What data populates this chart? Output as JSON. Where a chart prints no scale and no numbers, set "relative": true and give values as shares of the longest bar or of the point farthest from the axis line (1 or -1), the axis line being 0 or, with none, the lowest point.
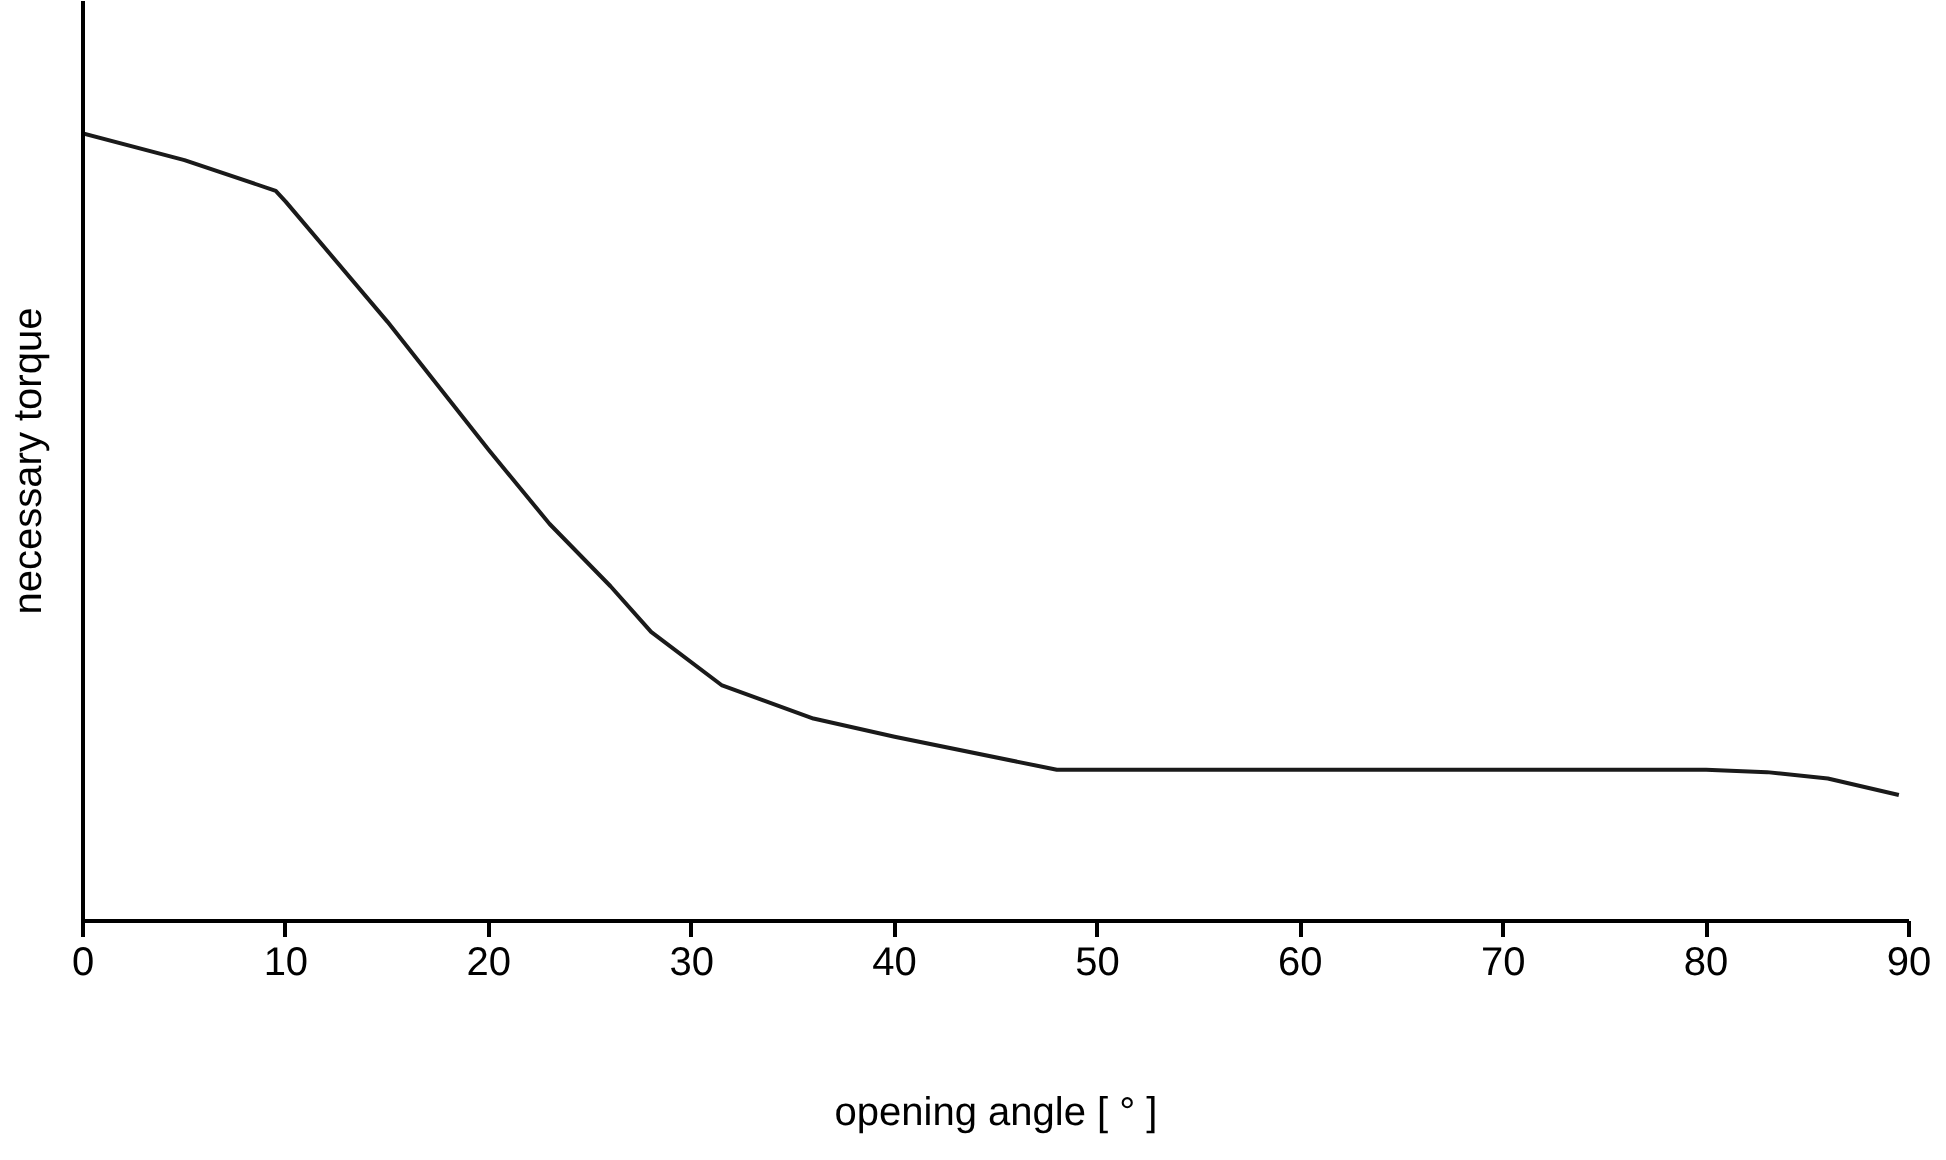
{
  "chart_data": {
    "type": "line",
    "relative": true,
    "xlabel": "opening angle [ ° ]",
    "ylabel": "necessary torque",
    "xlim": [
      0,
      90
    ],
    "xticks": [
      0,
      10,
      20,
      30,
      40,
      50,
      60,
      70,
      80,
      90
    ],
    "grid": false,
    "tick_labels": "x",
    "x": [
      0,
      5,
      9.5,
      10,
      15,
      20,
      23,
      26,
      28,
      31.5,
      36,
      40,
      48,
      60,
      80,
      83,
      86,
      89.5
    ],
    "series": [
      {
        "color": "#1a1a1a",
        "values": [
          1.0,
          0.966,
          0.927,
          0.913,
          0.761,
          0.598,
          0.504,
          0.425,
          0.367,
          0.299,
          0.257,
          0.234,
          0.192,
          0.192,
          0.192,
          0.189,
          0.181,
          0.16
        ]
      }
    ]
  }
}
